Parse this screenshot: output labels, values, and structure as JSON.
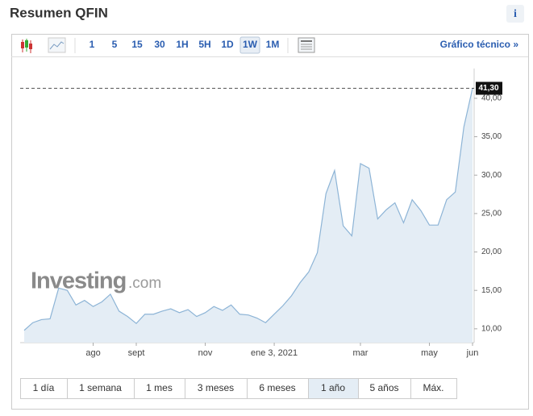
{
  "header": {
    "title": "Resumen QFIN",
    "info": "i"
  },
  "toolbar": {
    "intervals": [
      "1",
      "5",
      "15",
      "30",
      "1H",
      "5H",
      "1D",
      "1W",
      "1M"
    ],
    "selected": "1W",
    "link": "Gráfico técnico »"
  },
  "watermark": {
    "brand": "Investing",
    "suffix": ".com"
  },
  "chart_data": {
    "type": "area",
    "color": "#8db4d6",
    "fill": "#e4edf5",
    "categories": [
      null,
      null,
      null,
      null,
      null,
      null,
      null,
      null,
      "ago",
      null,
      null,
      null,
      null,
      "sept",
      null,
      null,
      null,
      null,
      null,
      null,
      null,
      "nov",
      null,
      null,
      null,
      null,
      null,
      null,
      null,
      "ene 3, 2021",
      null,
      null,
      null,
      null,
      null,
      null,
      null,
      null,
      null,
      "mar",
      null,
      null,
      null,
      null,
      null,
      null,
      null,
      "may",
      null,
      null,
      null,
      null,
      "jun"
    ],
    "values": [
      9.8,
      10.8,
      11.2,
      11.3,
      15.3,
      15.0,
      13.1,
      13.7,
      12.9,
      13.5,
      14.5,
      12.3,
      11.6,
      10.7,
      11.9,
      11.9,
      12.3,
      12.6,
      12.1,
      12.5,
      11.6,
      12.1,
      12.9,
      12.4,
      13.1,
      11.9,
      11.8,
      11.4,
      10.8,
      11.9,
      13.0,
      14.3,
      16.0,
      17.4,
      19.9,
      27.6,
      30.6,
      23.4,
      22.1,
      31.5,
      30.9,
      24.3,
      25.5,
      26.4,
      23.8,
      26.8,
      25.4,
      23.5,
      23.5,
      26.8,
      27.8,
      36.3,
      41.3
    ],
    "ylim": [
      8.2,
      42.3
    ],
    "yticks": [
      {
        "value": 10,
        "label": "10,00"
      },
      {
        "value": 15,
        "label": "15,00"
      },
      {
        "value": 20,
        "label": "20,00"
      },
      {
        "value": 25,
        "label": "25,00"
      },
      {
        "value": 30,
        "label": "30,00"
      },
      {
        "value": 35,
        "label": "35,00"
      },
      {
        "value": 40,
        "label": "40,00"
      }
    ],
    "current": {
      "value": 41.3,
      "label": "41,30"
    }
  },
  "ranges": {
    "items": [
      "1 día",
      "1 semana",
      "1 mes",
      "3 meses",
      "6 meses",
      "1 año",
      "5 años",
      "Máx."
    ],
    "selected": "1 año"
  }
}
